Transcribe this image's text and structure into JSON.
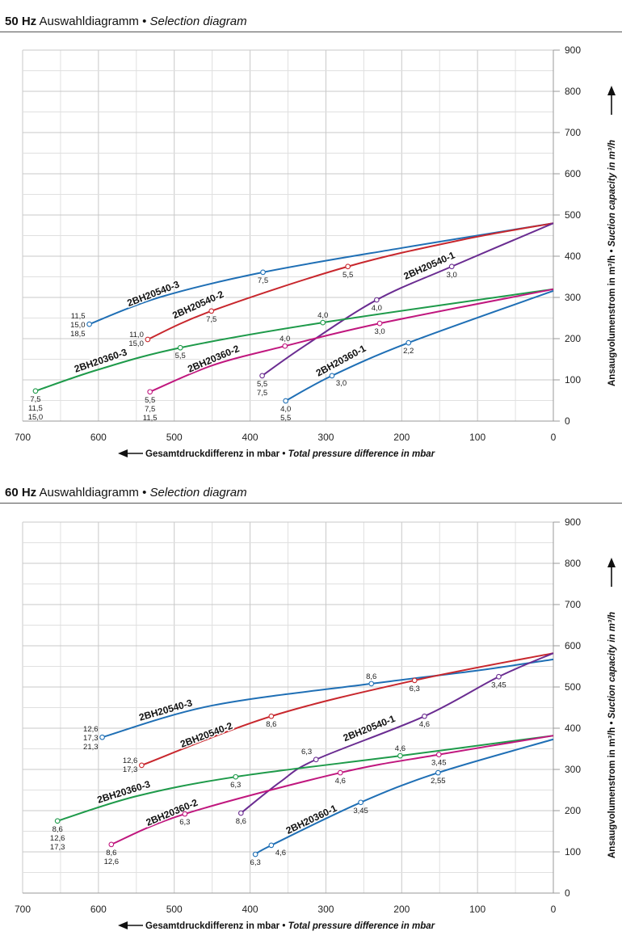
{
  "chart_data": [
    {
      "type": "line",
      "title": {
        "freq": "50 Hz",
        "de": "Auswahldiagramm",
        "sep": "•",
        "en": "Selection diagram"
      },
      "xlabel": {
        "de": "Gesamtdruckdifferenz in mbar",
        "sep": "•",
        "en": "Total pressure difference in mbar"
      },
      "ylabel": {
        "de": "Ansaugvolumenstrom in m³/h",
        "sep": "•",
        "en": "Suction capacity in m³/h"
      },
      "xlim": [
        700,
        0
      ],
      "ylim": [
        0,
        900
      ],
      "x_ticks": [
        700,
        600,
        500,
        400,
        300,
        200,
        100,
        0
      ],
      "y_ticks": [
        0,
        100,
        200,
        300,
        400,
        500,
        600,
        700,
        800,
        900
      ],
      "grid": true,
      "series": [
        {
          "name": "2BH20540-3",
          "color": "#1f6fb5",
          "points": [
            [
              612,
              235
            ],
            [
              520,
              300
            ],
            [
              383,
              361
            ],
            [
              200,
              420
            ],
            [
              0,
              480
            ]
          ],
          "markers": [
            {
              "x": 612,
              "y": 235,
              "labels": [
                "11,5",
                "15,0",
                "18,5"
              ],
              "pos": "left"
            },
            {
              "x": 383,
              "y": 361,
              "labels": [
                "7,5"
              ],
              "pos": "below"
            }
          ],
          "name_at": [
            560,
            270
          ]
        },
        {
          "name": "2BH20540-2",
          "color": "#c8272d",
          "points": [
            [
              535,
              198
            ],
            [
              451,
              267
            ],
            [
              271,
              375
            ],
            [
              120,
              440
            ],
            [
              0,
              480
            ]
          ],
          "markers": [
            {
              "x": 535,
              "y": 198,
              "labels": [
                "11,0",
                "15,0"
              ],
              "pos": "left"
            },
            {
              "x": 451,
              "y": 267,
              "labels": [
                "7,5"
              ],
              "pos": "below"
            },
            {
              "x": 271,
              "y": 375,
              "labels": [
                "5,5"
              ],
              "pos": "below"
            }
          ],
          "name_at": [
            500,
            240
          ]
        },
        {
          "name": "2BH20540-1",
          "color": "#6a2c91",
          "points": [
            [
              384,
              110
            ],
            [
              330,
              180
            ],
            [
              233,
              294
            ],
            [
              134,
              375
            ],
            [
              0,
              480
            ]
          ],
          "markers": [
            {
              "x": 384,
              "y": 110,
              "labels": [
                "5,5",
                "7,5"
              ],
              "pos": "below"
            },
            {
              "x": 233,
              "y": 294,
              "labels": [
                "4,0"
              ],
              "pos": "below"
            },
            {
              "x": 134,
              "y": 375,
              "labels": [
                "3,0"
              ],
              "pos": "below"
            }
          ],
          "name_at": [
            195,
            335
          ]
        },
        {
          "name": "2BH20360-3",
          "color": "#1e9a4a",
          "points": [
            [
              683,
              73
            ],
            [
              600,
              125
            ],
            [
              492,
              178
            ],
            [
              304,
              239
            ],
            [
              0,
              320
            ]
          ],
          "markers": [
            {
              "x": 683,
              "y": 73,
              "labels": [
                "7,5",
                "11,5",
                "15,0"
              ],
              "pos": "below"
            },
            {
              "x": 492,
              "y": 178,
              "labels": [
                "5,5"
              ],
              "pos": "below"
            },
            {
              "x": 304,
              "y": 239,
              "labels": [
                "4,0"
              ],
              "pos": "above"
            }
          ],
          "name_at": [
            630,
            110
          ]
        },
        {
          "name": "2BH20360-2",
          "color": "#c0177e",
          "points": [
            [
              532,
              71
            ],
            [
              450,
              135
            ],
            [
              354,
              182
            ],
            [
              229,
              237
            ],
            [
              0,
              320
            ]
          ],
          "markers": [
            {
              "x": 532,
              "y": 71,
              "labels": [
                "5,5",
                "7,5",
                "11,5"
              ],
              "pos": "below"
            },
            {
              "x": 354,
              "y": 182,
              "labels": [
                "4,0"
              ],
              "pos": "above"
            },
            {
              "x": 229,
              "y": 237,
              "labels": [
                "3,0"
              ],
              "pos": "below"
            }
          ],
          "name_at": [
            480,
            110
          ]
        },
        {
          "name": "2BH20360-1",
          "color": "#1f6fb5",
          "points": [
            [
              353,
              49
            ],
            [
              292,
              110
            ],
            [
              191,
              190
            ],
            [
              0,
              316
            ]
          ],
          "markers": [
            {
              "x": 353,
              "y": 49,
              "labels": [
                "4,0",
                "5,5"
              ],
              "pos": "below"
            },
            {
              "x": 292,
              "y": 110,
              "labels": [
                "3,0"
              ],
              "pos": "right"
            },
            {
              "x": 191,
              "y": 190,
              "labels": [
                "2,2"
              ],
              "pos": "below"
            }
          ],
          "name_at": [
            310,
            100
          ]
        }
      ]
    },
    {
      "type": "line",
      "title": {
        "freq": "60 Hz",
        "de": "Auswahldiagramm",
        "sep": "•",
        "en": "Selection diagram"
      },
      "xlabel": {
        "de": "Gesamtdruckdifferenz in mbar",
        "sep": "•",
        "en": "Total pressure difference in mbar"
      },
      "ylabel": {
        "de": "Ansaugvolumenstrom in m³/h",
        "sep": "•",
        "en": "Suction capacity in m³/h"
      },
      "xlim": [
        700,
        0
      ],
      "ylim": [
        0,
        900
      ],
      "x_ticks": [
        700,
        600,
        500,
        400,
        300,
        200,
        100,
        0
      ],
      "y_ticks": [
        0,
        100,
        200,
        300,
        400,
        500,
        600,
        700,
        800,
        900
      ],
      "grid": true,
      "series": [
        {
          "name": "2BH20540-3",
          "color": "#1f6fb5",
          "points": [
            [
              595,
              378
            ],
            [
              450,
              455
            ],
            [
              240,
              508
            ],
            [
              100,
              540
            ],
            [
              0,
              567
            ]
          ],
          "markers": [
            {
              "x": 595,
              "y": 378,
              "labels": [
                "12,6",
                "17,3",
                "21,3"
              ],
              "pos": "left"
            },
            {
              "x": 240,
              "y": 508,
              "labels": [
                "8,6"
              ],
              "pos": "above"
            }
          ],
          "name_at": [
            545,
            410
          ]
        },
        {
          "name": "2BH20540-2",
          "color": "#c8272d",
          "points": [
            [
              543,
              310
            ],
            [
              372,
              429
            ],
            [
              183,
              516
            ],
            [
              0,
              582
            ]
          ],
          "markers": [
            {
              "x": 543,
              "y": 310,
              "labels": [
                "12,6",
                "17,3"
              ],
              "pos": "left"
            },
            {
              "x": 372,
              "y": 429,
              "labels": [
                "8,6"
              ],
              "pos": "below"
            },
            {
              "x": 183,
              "y": 516,
              "labels": [
                "6,3"
              ],
              "pos": "below"
            }
          ],
          "name_at": [
            490,
            345
          ]
        },
        {
          "name": "2BH20540-1",
          "color": "#6a2c91",
          "points": [
            [
              412,
              194
            ],
            [
              360,
              270
            ],
            [
              313,
              324
            ],
            [
              170,
              429
            ],
            [
              72,
              525
            ],
            [
              0,
              582
            ]
          ],
          "markers": [
            {
              "x": 412,
              "y": 194,
              "labels": [
                "8,6"
              ],
              "pos": "below"
            },
            {
              "x": 313,
              "y": 324,
              "labels": [
                "6,3"
              ],
              "pos": "left"
            },
            {
              "x": 170,
              "y": 429,
              "labels": [
                "4,6"
              ],
              "pos": "below"
            },
            {
              "x": 72,
              "y": 525,
              "labels": [
                "3,45"
              ],
              "pos": "below"
            }
          ],
          "name_at": [
            275,
            360
          ]
        },
        {
          "name": "2BH20360-3",
          "color": "#1e9a4a",
          "points": [
            [
              654,
              175
            ],
            [
              550,
              235
            ],
            [
              419,
              282
            ],
            [
              202,
              333
            ],
            [
              0,
              382
            ]
          ],
          "markers": [
            {
              "x": 654,
              "y": 175,
              "labels": [
                "8,6",
                "12,6",
                "17,3"
              ],
              "pos": "below"
            },
            {
              "x": 419,
              "y": 282,
              "labels": [
                "6,3"
              ],
              "pos": "below"
            },
            {
              "x": 202,
              "y": 333,
              "labels": [
                "4,6"
              ],
              "pos": "above"
            }
          ],
          "name_at": [
            600,
            210
          ]
        },
        {
          "name": "2BH20360-2",
          "color": "#c0177e",
          "points": [
            [
              583,
              118
            ],
            [
              486,
              192
            ],
            [
              281,
              292
            ],
            [
              151,
              336
            ],
            [
              0,
              382
            ]
          ],
          "markers": [
            {
              "x": 583,
              "y": 118,
              "labels": [
                "8,6",
                "12,6"
              ],
              "pos": "below"
            },
            {
              "x": 486,
              "y": 192,
              "labels": [
                "6,3"
              ],
              "pos": "below"
            },
            {
              "x": 281,
              "y": 292,
              "labels": [
                "4,6"
              ],
              "pos": "below"
            },
            {
              "x": 151,
              "y": 336,
              "labels": [
                "3,45"
              ],
              "pos": "below"
            }
          ],
          "name_at": [
            535,
            155
          ]
        },
        {
          "name": "2BH20360-1",
          "color": "#1f6fb5",
          "points": [
            [
              393,
              94
            ],
            [
              372,
              116
            ],
            [
              254,
              220
            ],
            [
              152,
              292
            ],
            [
              0,
              373
            ]
          ],
          "markers": [
            {
              "x": 393,
              "y": 94,
              "labels": [
                "6,3"
              ],
              "pos": "below"
            },
            {
              "x": 372,
              "y": 116,
              "labels": [
                "4,6"
              ],
              "pos": "right"
            },
            {
              "x": 254,
              "y": 220,
              "labels": [
                "3,45"
              ],
              "pos": "below"
            },
            {
              "x": 152,
              "y": 292,
              "labels": [
                "2,55"
              ],
              "pos": "below"
            }
          ],
          "name_at": [
            350,
            135
          ]
        }
      ]
    }
  ]
}
